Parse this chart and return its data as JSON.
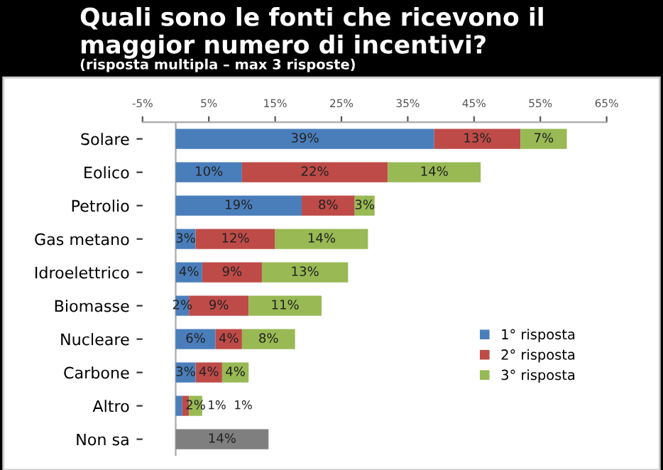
{
  "chart_data": {
    "type": "bar",
    "orientation": "horizontal",
    "stacked": true,
    "title": "Quali sono le fonti che ricevono il maggior numero di incentivi?",
    "subtitle": "(risposta multipla – max 3 risposte)",
    "categories": [
      "Solare",
      "Eolico",
      "Petrolio",
      "Gas metano",
      "Idroelettrico",
      "Biomasse",
      "Nucleare",
      "Carbone",
      "Altro",
      "Non sa"
    ],
    "series": [
      {
        "name": "1° risposta",
        "color": "#4a7ebb",
        "values": [
          39,
          10,
          19,
          3,
          4,
          2,
          6,
          3,
          1,
          null
        ],
        "value_labels": [
          "39%",
          "10%",
          "19%",
          "3%",
          "4%",
          "2%",
          "6%",
          "3%",
          "1%",
          null
        ]
      },
      {
        "name": "2° risposta",
        "color": "#be4b48",
        "values": [
          13,
          22,
          8,
          12,
          9,
          9,
          4,
          4,
          1,
          null
        ],
        "value_labels": [
          "13%",
          "22%",
          "8%",
          "12%",
          "9%",
          "9%",
          "4%",
          "4%",
          "1%",
          null
        ]
      },
      {
        "name": "3° risposta",
        "color": "#98b954",
        "values": [
          7,
          14,
          3,
          14,
          13,
          11,
          8,
          4,
          2,
          null
        ],
        "value_labels": [
          "7%",
          "14%",
          "3%",
          "14%",
          "13%",
          "11%",
          "8%",
          "4%",
          "2%",
          null
        ]
      },
      {
        "color": "#7f7f7f",
        "values": [
          null,
          null,
          null,
          null,
          null,
          null,
          null,
          null,
          null,
          14
        ],
        "value_labels": [
          null,
          null,
          null,
          null,
          null,
          null,
          null,
          null,
          null,
          "14%"
        ]
      }
    ],
    "xlim": [
      -5,
      65
    ],
    "xticks": [
      {
        "value": -5,
        "label": "-5%"
      },
      {
        "value": 5,
        "label": "5%"
      },
      {
        "value": 15,
        "label": "15%"
      },
      {
        "value": 25,
        "label": "25%"
      },
      {
        "value": 35,
        "label": "35%"
      },
      {
        "value": 45,
        "label": "45%"
      },
      {
        "value": 55,
        "label": "55%"
      },
      {
        "value": 65,
        "label": "65%"
      }
    ],
    "grid": false,
    "legend": "right"
  }
}
